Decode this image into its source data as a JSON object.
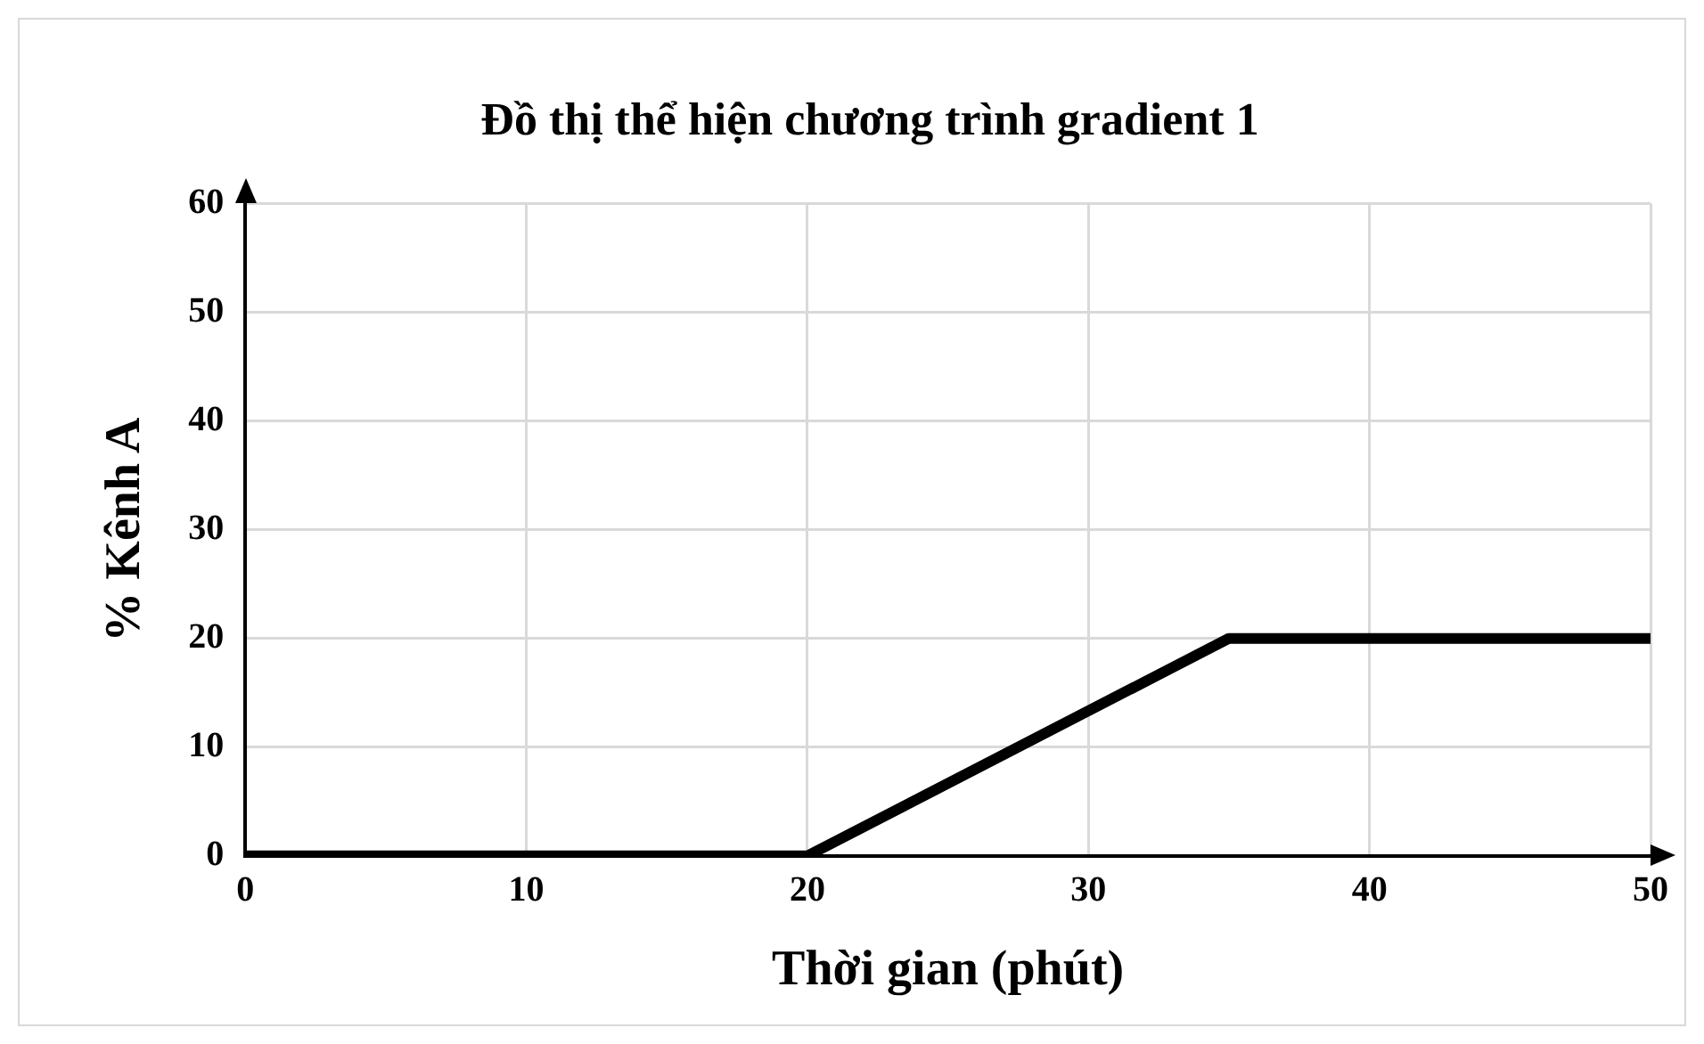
{
  "chart_data": {
    "type": "line",
    "title": "Đồ thị thể hiện chương trình gradient 1",
    "xlabel": "Thời gian (phút)",
    "ylabel": "% Kênh A",
    "x": [
      0,
      20,
      35,
      50
    ],
    "series": [
      {
        "color": "#000000",
        "values": [
          0,
          0,
          20,
          20
        ]
      }
    ],
    "xlim": [
      0,
      50
    ],
    "xticks": [
      0,
      10,
      20,
      30,
      40,
      50
    ],
    "ylim": [
      0,
      60
    ],
    "yticks": [
      0,
      10,
      20,
      30,
      40,
      50,
      60
    ],
    "grid": true,
    "legend": false,
    "marker": "none",
    "line_style": "solid"
  }
}
